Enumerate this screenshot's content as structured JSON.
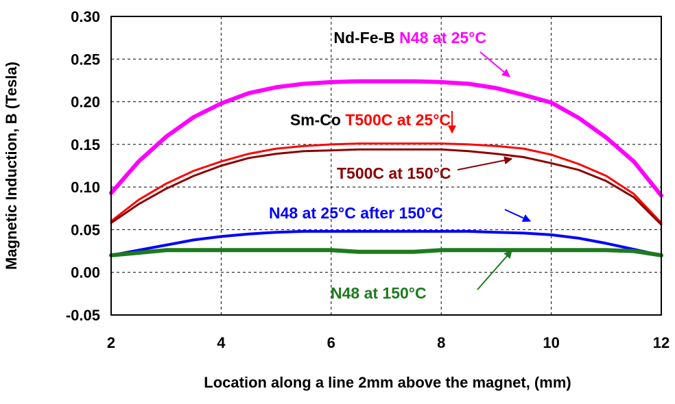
{
  "chart_data": {
    "type": "line",
    "title": "",
    "xlabel": "Location along a line 2mm above the magnet, (mm)",
    "ylabel": "Magnetic Induction, B (Tesla)",
    "xlim": [
      2,
      12
    ],
    "ylim": [
      -0.05,
      0.3
    ],
    "xticks": [
      "2",
      "4",
      "6",
      "8",
      "10",
      "12"
    ],
    "yticks": [
      "0.30",
      "0.25",
      "0.20",
      "0.15",
      "0.10",
      "0.05",
      "0.00",
      "-0.05"
    ],
    "grid": "dashed",
    "legend": "none",
    "x": [
      2.0,
      2.5,
      3.0,
      3.5,
      4.0,
      4.5,
      5.0,
      5.5,
      6.0,
      6.5,
      7.0,
      7.5,
      8.0,
      8.5,
      9.0,
      9.5,
      10.0,
      10.5,
      11.0,
      11.5,
      12.0
    ],
    "series": [
      {
        "name": "Nd-Fe-B N48 at 25°C",
        "color": "#ff00ff",
        "values": [
          0.093,
          0.13,
          0.159,
          0.182,
          0.198,
          0.21,
          0.217,
          0.221,
          0.223,
          0.224,
          0.224,
          0.224,
          0.223,
          0.221,
          0.216,
          0.208,
          0.199,
          0.181,
          0.158,
          0.13,
          0.09
        ]
      },
      {
        "name": "Sm-Co T500C at 25°C",
        "color": "#ff0000",
        "values": [
          0.06,
          0.085,
          0.104,
          0.119,
          0.13,
          0.139,
          0.145,
          0.148,
          0.15,
          0.151,
          0.151,
          0.151,
          0.151,
          0.15,
          0.148,
          0.145,
          0.138,
          0.127,
          0.113,
          0.092,
          0.058
        ]
      },
      {
        "name": "T500C at 150°C",
        "color": "#8b0000",
        "values": [
          0.058,
          0.08,
          0.098,
          0.113,
          0.125,
          0.134,
          0.139,
          0.142,
          0.143,
          0.144,
          0.144,
          0.144,
          0.144,
          0.142,
          0.139,
          0.135,
          0.128,
          0.12,
          0.107,
          0.088,
          0.056
        ]
      },
      {
        "name": "N48 at 25°C after 150°C",
        "color": "#0000ff",
        "values": [
          0.02,
          0.026,
          0.032,
          0.038,
          0.042,
          0.045,
          0.047,
          0.048,
          0.048,
          0.048,
          0.048,
          0.048,
          0.048,
          0.048,
          0.047,
          0.046,
          0.044,
          0.04,
          0.034,
          0.027,
          0.02
        ]
      },
      {
        "name": "N48 at 150°C",
        "color": "#1e7a1e",
        "values": [
          0.02,
          0.023,
          0.026,
          0.026,
          0.026,
          0.026,
          0.026,
          0.026,
          0.026,
          0.024,
          0.024,
          0.024,
          0.026,
          0.026,
          0.026,
          0.026,
          0.026,
          0.026,
          0.026,
          0.025,
          0.02
        ]
      }
    ],
    "annotations": [
      {
        "parts": [
          {
            "text": "Nd-Fe-B ",
            "color": "#000000"
          },
          {
            "text": "N48 at 25°C",
            "color": "#ff00ff"
          }
        ],
        "arrow_color": "#ff00ff"
      },
      {
        "parts": [
          {
            "text": "Sm-Co ",
            "color": "#000000"
          },
          {
            "text": "T500C at 25°C",
            "color": "#ff0000"
          }
        ],
        "arrow_color": "#ff0000"
      },
      {
        "parts": [
          {
            "text": "T500C at 150°C",
            "color": "#8b0000"
          }
        ],
        "arrow_color": "#8b0000"
      },
      {
        "parts": [
          {
            "text": "N48 at 25°C after 150°C",
            "color": "#0000ff"
          }
        ],
        "arrow_color": "#0000ff"
      },
      {
        "parts": [
          {
            "text": "N48 at 150°C",
            "color": "#1e7a1e"
          }
        ],
        "arrow_color": "#1e7a1e"
      }
    ]
  }
}
